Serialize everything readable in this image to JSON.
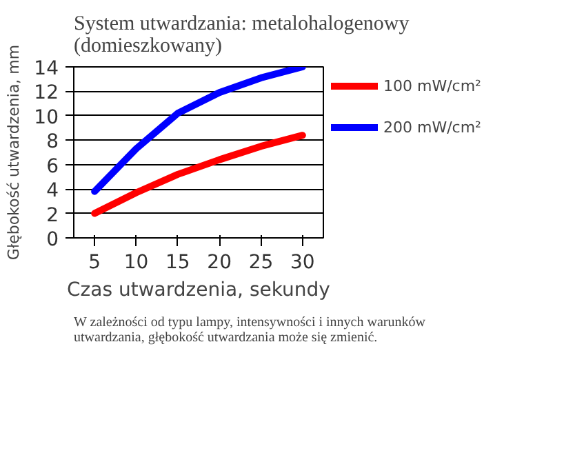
{
  "chart_data": {
    "type": "line",
    "title": "System utwardzania: metalohalogenowy\n(domieszkowany)",
    "xlabel": "Czas utwardzenia, sekundy",
    "ylabel": "Głębokość utwardzenia, mm",
    "x": [
      5,
      10,
      15,
      20,
      25,
      30
    ],
    "series": [
      {
        "name": "100 mW/cm²",
        "color": "#ff0000",
        "values": [
          2.0,
          3.7,
          5.2,
          6.4,
          7.5,
          8.4
        ]
      },
      {
        "name": "200 mW/cm²",
        "color": "#0000ff",
        "values": [
          3.8,
          7.3,
          10.2,
          11.9,
          13.1,
          14.0
        ]
      }
    ],
    "xlim": [
      2.5,
      32.5
    ],
    "xticks": [
      5,
      10,
      15,
      20,
      25,
      30
    ],
    "ylim": [
      0,
      14
    ],
    "yticks": [
      0,
      2,
      4,
      6,
      8,
      10,
      12,
      14
    ],
    "grid": "y",
    "legend": "right",
    "annotations": [
      "W zależności od typu lampy, intensywności i innych warunków utwardzania, głębokość utwardzania może się zmienić."
    ]
  }
}
